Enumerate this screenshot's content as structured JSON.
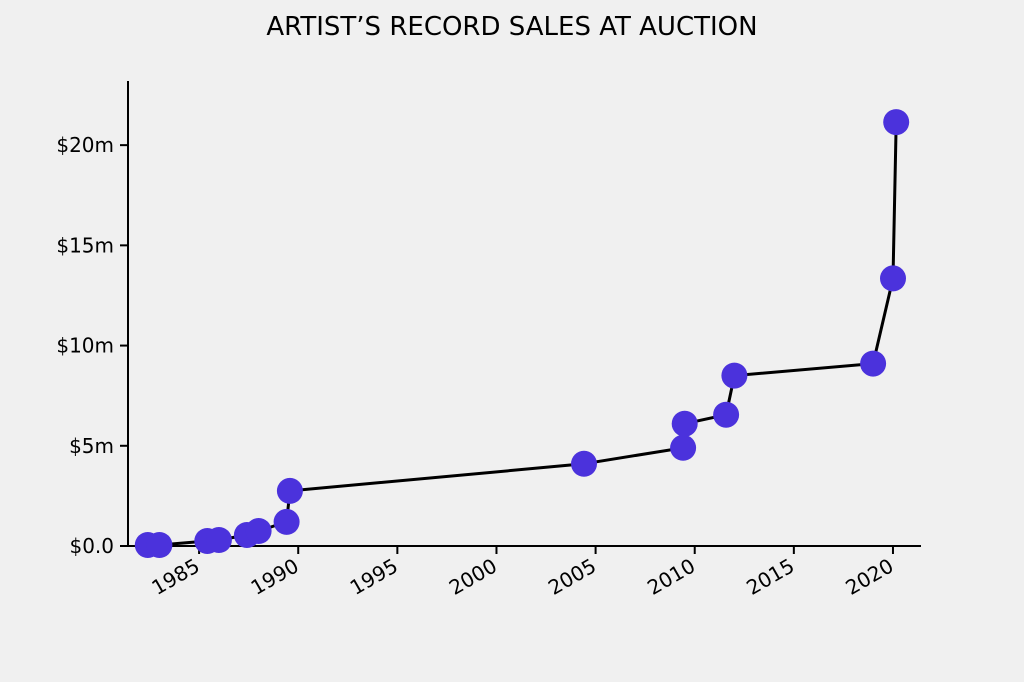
{
  "chart_data": {
    "type": "line",
    "title": "ARTIST’S RECORD SALES AT AUCTION",
    "xlabel": "",
    "ylabel": "",
    "x_type": "date",
    "xlim": [
      "1981-06-01",
      "2021-06-01"
    ],
    "ylim": [
      0,
      23.2
    ],
    "x_ticks": [
      {
        "value": "1985-01-01",
        "label": "1985"
      },
      {
        "value": "1990-01-01",
        "label": "1990"
      },
      {
        "value": "1995-01-01",
        "label": "1995"
      },
      {
        "value": "2000-01-01",
        "label": "2000"
      },
      {
        "value": "2005-01-01",
        "label": "2005"
      },
      {
        "value": "2010-01-01",
        "label": "2010"
      },
      {
        "value": "2015-01-01",
        "label": "2015"
      },
      {
        "value": "2020-01-01",
        "label": "2020"
      }
    ],
    "y_ticks": [
      {
        "value": 0,
        "label": "$0.0"
      },
      {
        "value": 5,
        "label": "$5m"
      },
      {
        "value": 10,
        "label": "$10m"
      },
      {
        "value": 15,
        "label": "$15m"
      },
      {
        "value": 20,
        "label": "$20m"
      }
    ],
    "grid": false,
    "series": [
      {
        "color": "#4b32dc",
        "line_color": "#000000",
        "points": [
          {
            "x": "1982-06-01",
            "y": 0.05
          },
          {
            "x": "1983-01-01",
            "y": 0.05
          },
          {
            "x": "1985-06-01",
            "y": 0.25
          },
          {
            "x": "1986-01-01",
            "y": 0.3
          },
          {
            "x": "1987-06-01",
            "y": 0.55
          },
          {
            "x": "1988-01-01",
            "y": 0.75
          },
          {
            "x": "1989-06-01",
            "y": 1.2
          },
          {
            "x": "1989-08-01",
            "y": 2.75
          },
          {
            "x": "2004-06-01",
            "y": 4.1
          },
          {
            "x": "2009-06-01",
            "y": 4.9
          },
          {
            "x": "2009-07-01",
            "y": 6.1
          },
          {
            "x": "2011-08-01",
            "y": 6.55
          },
          {
            "x": "2012-01-01",
            "y": 8.5
          },
          {
            "x": "2019-01-01",
            "y": 9.1
          },
          {
            "x": "2020-01-01",
            "y": 13.35
          },
          {
            "x": "2020-03-01",
            "y": 21.15
          }
        ]
      }
    ]
  }
}
